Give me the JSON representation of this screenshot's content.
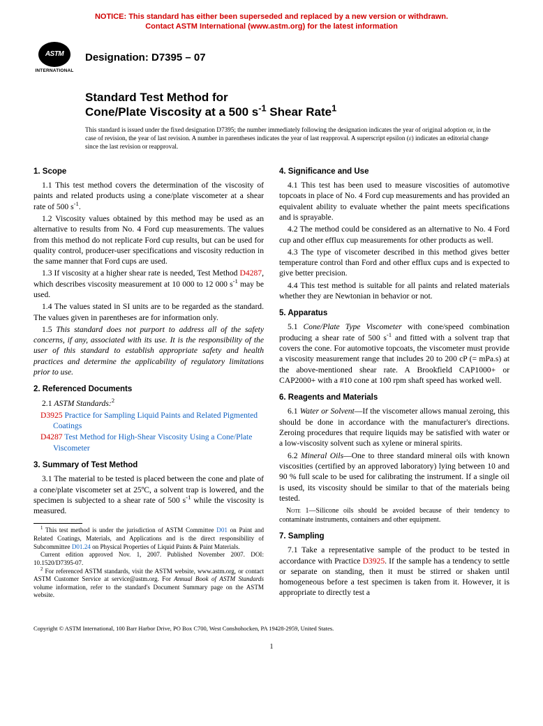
{
  "notice": {
    "line1": "NOTICE: This standard has either been superseded and replaced by a new version or withdrawn.",
    "line2": "Contact ASTM International (www.astm.org) for the latest information",
    "color": "#d00000"
  },
  "logo": {
    "text": "ASTM",
    "subtext": "INTERNATIONAL"
  },
  "designation": {
    "label": "Designation: D7395 – 07"
  },
  "title": {
    "line1": "Standard Test Method for",
    "line2_pre": "Cone/Plate Viscosity at a 500 s",
    "line2_sup": "-1",
    "line2_post": " Shear Rate",
    "title_sup": "1"
  },
  "issuance": "This standard is issued under the fixed designation D7395; the number immediately following the designation indicates the year of original adoption or, in the case of revision, the year of last revision. A number in parentheses indicates the year of last reapproval. A superscript epsilon (ε) indicates an editorial change since the last revision or reapproval.",
  "s1": {
    "head": "1. Scope",
    "p1a": "1.1 This test method covers the determination of the viscosity of paints and related products using a cone/plate viscometer at a shear rate of 500 s",
    "p1a_sup": "-1",
    "p1a_end": ".",
    "p2": "1.2 Viscosity values obtained by this method may be used as an alternative to results from No. 4 Ford cup measurements. The values from this method do not replicate Ford cup results, but can be used for quality control, producer-user specifications and viscosity reduction in the same manner that Ford cups are used.",
    "p3_pre": "1.3 If viscosity at a higher shear rate is needed, Test Method ",
    "p3_link": "D4287",
    "p3_mid": ", which describes viscosity measurement at 10 000 to 12 000 s",
    "p3_sup": "-1",
    "p3_post": " may be used.",
    "p4": "1.4 The values stated in SI units are to be regarded as the standard. The values given in parentheses are for information only.",
    "p5": "1.5 This standard does not purport to address all of the safety concerns, if any, associated with its use. It is the responsibility of the user of this standard to establish appropriate safety and health practices and determine the applicability of regulatory limitations prior to use."
  },
  "s2": {
    "head": "2. Referenced Documents",
    "p1_pre": "2.1 ",
    "p1_ital": "ASTM Standards:",
    "p1_sup": "2",
    "ref1_code": "D3925",
    "ref1_text": " Practice for Sampling Liquid Paints and Related Pigmented Coatings",
    "ref2_code": "D4287",
    "ref2_text": " Test Method for High-Shear Viscosity Using a Cone/Plate Viscometer"
  },
  "s3": {
    "head": "3. Summary of Test Method",
    "p1_pre": "3.1 The material to be tested is placed between the cone and plate of a cone/plate viscometer set at 25ºC, a solvent trap is lowered, and the specimen is subjected to a shear rate of 500 s",
    "p1_sup": "-1",
    "p1_post": " while the viscosity is measured."
  },
  "fn1_a": " This test method is under the jurisdiction of ASTM Committee ",
  "fn1_link1": "D01",
  "fn1_b": " on Paint and Related Coatings, Materials, and Applications and is the direct responsibility of Subcommittee ",
  "fn1_link2": "D01.24",
  "fn1_c": " on Physical Properties of Liquid Paints & Paint Materials.",
  "fn1_d": "Current edition approved Nov. 1, 2007. Published November 2007. DOI: 10.1520/D7395-07.",
  "fn2_a": " For referenced ASTM standards, visit the ASTM website, www.astm.org, or contact ASTM Customer Service at service@astm.org. For ",
  "fn2_ital": "Annual Book of ASTM Standards",
  "fn2_b": " volume information, refer to the standard's Document Summary page on the ASTM website.",
  "s4": {
    "head": "4. Significance and Use",
    "p1": "4.1 This test has been used to measure viscosities of automotive topcoats in place of No. 4 Ford cup measurements and has provided an equivalent ability to evaluate whether the paint meets specifications and is sprayable.",
    "p2": "4.2 The method could be considered as an alternative to No. 4 Ford cup and other efflux cup measurements for other products as well.",
    "p3": "4.3 The type of viscometer described in this method gives better temperature control than Ford and other efflux cups and is expected to give better precision.",
    "p4": "4.4 This test method is suitable for all paints and related materials whether they are Newtonian in behavior or not."
  },
  "s5": {
    "head": "5. Apparatus",
    "p1_pre": "5.1 ",
    "p1_ital": "Cone/Plate Type Viscometer",
    "p1_mid": " with cone/speed combination producing a shear rate of 500 s",
    "p1_sup": "-1",
    "p1_post": " and fitted with a solvent trap that covers the cone. For automotive topcoats, the viscometer must provide a viscosity measurement range that includes 20 to 200 cP (= mPa.s) at the above-mentioned shear rate. A Brookfield CAP1000+ or CAP2000+ with a #10 cone at 100 rpm shaft speed has worked well."
  },
  "s6": {
    "head": "6. Reagents and Materials",
    "p1_pre": "6.1 ",
    "p1_ital": "Water or Solvent",
    "p1_post": "—If the viscometer allows manual zeroing, this should be done in accordance with the manufacturer's directions. Zeroing procedures that require liquids may be satisfied with water or a low-viscosity solvent such as xylene or mineral spirits.",
    "p2_pre": "6.2 ",
    "p2_ital": "Mineral Oils",
    "p2_post": "—One to three standard mineral oils with known viscosities (certified by an approved laboratory) lying between 10 and 90 % full scale to be used for calibrating the instrument. If a single oil is used, its viscosity should be similar to that of the materials being tested.",
    "note_label": "Note",
    "note_text": " 1—Silicone oils should be avoided because of their tendency to contaminate instruments, containers and other equipment."
  },
  "s7": {
    "head": "7. Sampling",
    "p1_pre": "7.1 Take a representative sample of the product to be tested in accordance with Practice ",
    "p1_link": "D3925",
    "p1_post": ". If the sample has a tendency to settle or separate on standing, then it must be stirred or shaken until homogeneous before a test specimen is taken from it. However, it is appropriate to directly test a"
  },
  "copyright": "Copyright © ASTM International, 100 Barr Harbor Drive, PO Box C700, West Conshohocken, PA 19428-2959, United States.",
  "pagenum": "1",
  "link_color": "#1060c0",
  "red_color": "#d00000"
}
